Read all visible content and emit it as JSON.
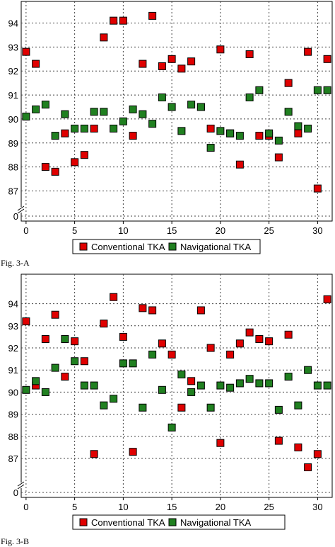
{
  "chart_data": [
    {
      "figure_label": "Fig. 3-A",
      "type": "scatter",
      "xlim": [
        -0.5,
        31.5
      ],
      "xticks": [
        0,
        5,
        10,
        15,
        20,
        25,
        30
      ],
      "yticks": [
        87,
        88,
        89,
        90,
        91,
        92,
        93,
        94
      ],
      "ylim": [
        86.6,
        94.4
      ],
      "axis_break": true,
      "baseline_tick": 0,
      "grid": true,
      "legend_position": "bottom",
      "series": [
        {
          "name": "Conventional TKA",
          "color": "#e00000",
          "points": [
            [
              0,
              92.8
            ],
            [
              1,
              92.3
            ],
            [
              2,
              88.0
            ],
            [
              3,
              87.8
            ],
            [
              4,
              89.4
            ],
            [
              5,
              88.2
            ],
            [
              6,
              88.5
            ],
            [
              7,
              89.6
            ],
            [
              8,
              93.4
            ],
            [
              9,
              94.1
            ],
            [
              10,
              94.1
            ],
            [
              11,
              89.3
            ],
            [
              12,
              92.3
            ],
            [
              13,
              94.3
            ],
            [
              14,
              92.2
            ],
            [
              15,
              92.5
            ],
            [
              16,
              92.1
            ],
            [
              17,
              92.4
            ],
            [
              18,
              90.5
            ],
            [
              19,
              89.6
            ],
            [
              20,
              92.9
            ],
            [
              21,
              89.4
            ],
            [
              22,
              88.1
            ],
            [
              23,
              92.7
            ],
            [
              24,
              89.3
            ],
            [
              25,
              89.3
            ],
            [
              26,
              88.4
            ],
            [
              27,
              91.5
            ],
            [
              28,
              89.4
            ],
            [
              29,
              92.8
            ],
            [
              30,
              87.1
            ],
            [
              31,
              92.5
            ]
          ]
        },
        {
          "name": "Navigational TKA",
          "color": "#208020",
          "points": [
            [
              0,
              90.1
            ],
            [
              1,
              90.4
            ],
            [
              2,
              90.6
            ],
            [
              3,
              89.3
            ],
            [
              4,
              90.2
            ],
            [
              5,
              89.6
            ],
            [
              6,
              89.6
            ],
            [
              7,
              90.3
            ],
            [
              8,
              90.3
            ],
            [
              9,
              89.6
            ],
            [
              10,
              89.9
            ],
            [
              11,
              90.4
            ],
            [
              12,
              90.2
            ],
            [
              13,
              89.8
            ],
            [
              14,
              90.9
            ],
            [
              15,
              90.5
            ],
            [
              16,
              89.5
            ],
            [
              17,
              90.6
            ],
            [
              18,
              90.5
            ],
            [
              19,
              88.8
            ],
            [
              20,
              89.5
            ],
            [
              21,
              89.4
            ],
            [
              22,
              89.3
            ],
            [
              23,
              90.9
            ],
            [
              24,
              91.2
            ],
            [
              25,
              89.4
            ],
            [
              26,
              89.1
            ],
            [
              27,
              90.3
            ],
            [
              28,
              89.7
            ],
            [
              29,
              89.6
            ],
            [
              30,
              91.2
            ],
            [
              31,
              91.2
            ]
          ]
        }
      ]
    },
    {
      "figure_label": "Fig. 3-B",
      "type": "scatter",
      "xlim": [
        -0.5,
        31.5
      ],
      "xticks": [
        0,
        5,
        10,
        15,
        20,
        25,
        30
      ],
      "yticks": [
        87,
        88,
        89,
        90,
        91,
        92,
        93,
        94
      ],
      "ylim": [
        86.2,
        94.5
      ],
      "axis_break": true,
      "baseline_tick": 0,
      "grid": true,
      "legend_position": "bottom",
      "series": [
        {
          "name": "Conventional TKA",
          "color": "#e00000",
          "points": [
            [
              0,
              93.2
            ],
            [
              1,
              90.3
            ],
            [
              2,
              92.4
            ],
            [
              3,
              93.5
            ],
            [
              4,
              90.7
            ],
            [
              5,
              92.3
            ],
            [
              6,
              91.4
            ],
            [
              7,
              87.2
            ],
            [
              8,
              93.1
            ],
            [
              9,
              94.3
            ],
            [
              10,
              92.5
            ],
            [
              11,
              87.3
            ],
            [
              12,
              93.8
            ],
            [
              13,
              93.7
            ],
            [
              14,
              92.2
            ],
            [
              15,
              91.7
            ],
            [
              16,
              89.3
            ],
            [
              17,
              90.5
            ],
            [
              18,
              93.7
            ],
            [
              19,
              92.0
            ],
            [
              20,
              87.7
            ],
            [
              21,
              91.7
            ],
            [
              22,
              92.2
            ],
            [
              23,
              92.7
            ],
            [
              24,
              92.4
            ],
            [
              25,
              92.3
            ],
            [
              26,
              87.8
            ],
            [
              27,
              92.6
            ],
            [
              28,
              87.5
            ],
            [
              29,
              86.6
            ],
            [
              30,
              87.2
            ],
            [
              31,
              94.2
            ]
          ]
        },
        {
          "name": "Navigational TKA",
          "color": "#208020",
          "points": [
            [
              0,
              90.1
            ],
            [
              1,
              90.5
            ],
            [
              2,
              90.0
            ],
            [
              3,
              91.1
            ],
            [
              4,
              92.4
            ],
            [
              5,
              91.4
            ],
            [
              6,
              90.3
            ],
            [
              7,
              90.3
            ],
            [
              8,
              89.4
            ],
            [
              9,
              89.7
            ],
            [
              10,
              91.3
            ],
            [
              11,
              91.3
            ],
            [
              12,
              89.3
            ],
            [
              13,
              91.7
            ],
            [
              14,
              90.1
            ],
            [
              15,
              88.4
            ],
            [
              16,
              90.8
            ],
            [
              17,
              90.0
            ],
            [
              18,
              90.3
            ],
            [
              19,
              89.3
            ],
            [
              20,
              90.3
            ],
            [
              21,
              90.2
            ],
            [
              22,
              90.4
            ],
            [
              23,
              90.6
            ],
            [
              24,
              90.4
            ],
            [
              25,
              90.4
            ],
            [
              26,
              89.2
            ],
            [
              27,
              90.7
            ],
            [
              28,
              89.4
            ],
            [
              29,
              91.0
            ],
            [
              30,
              90.3
            ],
            [
              31,
              90.3
            ]
          ]
        }
      ]
    }
  ]
}
